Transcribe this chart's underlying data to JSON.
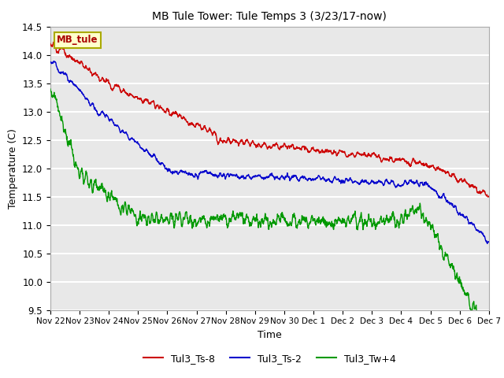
{
  "title": "MB Tule Tower: Tule Temps 3 (3/23/17-now)",
  "xlabel": "Time",
  "ylabel": "Temperature (C)",
  "ylim": [
    9.5,
    14.5
  ],
  "yticks": [
    9.5,
    10.0,
    10.5,
    11.0,
    11.5,
    12.0,
    12.5,
    13.0,
    13.5,
    14.0,
    14.5
  ],
  "xtick_labels": [
    "Nov 22",
    "Nov 23",
    "Nov 24",
    "Nov 25",
    "Nov 26",
    "Nov 27",
    "Nov 28",
    "Nov 29",
    "Nov 30",
    "Dec 1",
    "Dec 2",
    "Dec 3",
    "Dec 4",
    "Dec 5",
    "Dec 6",
    "Dec 7"
  ],
  "bg_color": "#e8e8e8",
  "grid_color": "#ffffff",
  "line_colors": {
    "Tul3_Ts-8": "#cc0000",
    "Tul3_Ts-2": "#0000cc",
    "Tul3_Tw+4": "#009900"
  },
  "legend_label": "MB_tule",
  "legend_bg": "#ffffcc",
  "legend_border": "#aaaa00",
  "series_labels": [
    "Tul3_Ts-8",
    "Tul3_Ts-2",
    "Tul3_Tw+4"
  ]
}
